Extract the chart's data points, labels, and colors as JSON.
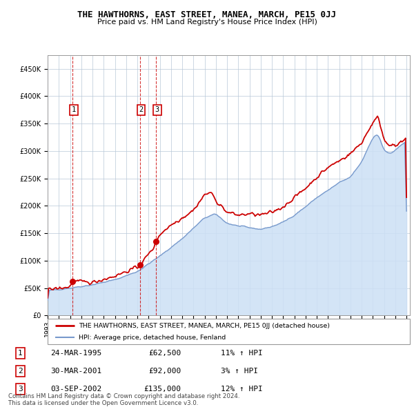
{
  "title": "THE HAWTHORNS, EAST STREET, MANEA, MARCH, PE15 0JJ",
  "subtitle": "Price paid vs. HM Land Registry's House Price Index (HPI)",
  "property_label": "THE HAWTHORNS, EAST STREET, MANEA, MARCH, PE15 0JJ (detached house)",
  "hpi_label": "HPI: Average price, detached house, Fenland",
  "transactions": [
    {
      "num": 1,
      "date": "24-MAR-1995",
      "price": 62500,
      "year": 1995.23,
      "hpi_pct": "11% ↑ HPI"
    },
    {
      "num": 2,
      "date": "30-MAR-2001",
      "price": 92000,
      "year": 2001.25,
      "hpi_pct": "3% ↑ HPI"
    },
    {
      "num": 3,
      "date": "03-SEP-2002",
      "price": 135000,
      "year": 2002.67,
      "hpi_pct": "12% ↑ HPI"
    }
  ],
  "property_color": "#cc0000",
  "hpi_color": "#7799cc",
  "ylim": [
    0,
    475000
  ],
  "yticks": [
    0,
    50000,
    100000,
    150000,
    200000,
    250000,
    300000,
    350000,
    400000,
    450000
  ],
  "xmin": 1993.0,
  "xmax": 2025.3,
  "footer": "Contains HM Land Registry data © Crown copyright and database right 2024.\nThis data is licensed under the Open Government Licence v3.0."
}
